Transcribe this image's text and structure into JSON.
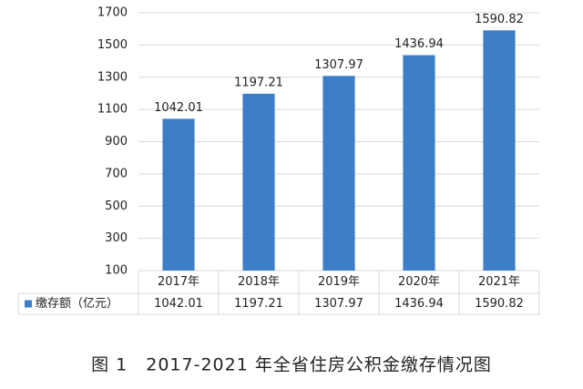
{
  "chart_data": {
    "type": "bar",
    "categories": [
      "2017年",
      "2018年",
      "2019年",
      "2020年",
      "2021年"
    ],
    "series": [
      {
        "name": "缴存额（亿元）",
        "color": "#3e7ec6",
        "values": [
          1042.01,
          1197.21,
          1307.97,
          1436.94,
          1590.82
        ]
      }
    ],
    "ylim": [
      100,
      1700
    ],
    "yticks": [
      100,
      300,
      500,
      700,
      900,
      1100,
      1300,
      1500,
      1700
    ],
    "grid": true,
    "legend": "bottom-table",
    "caption": "图 1　2017-2021 年全省住房公积金缴存情况图"
  }
}
